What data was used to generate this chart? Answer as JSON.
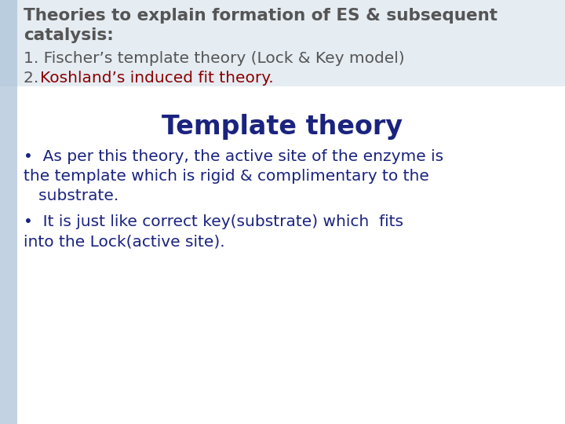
{
  "background_color": "#ffffff",
  "left_bar_color": "#a8c0d6",
  "top_bg_color": "#d0dde8",
  "header_bold_line1": "Theories to explain formation of ES & subsequent",
  "header_bold_line2": "catalysis:",
  "header_bold_color": "#555555",
  "line1_text": "1. Fischer’s template theory (Lock & Key model)",
  "line1_color": "#555555",
  "line2_num": "2. ",
  "line2_num_color": "#555555",
  "line2_main": "Koshland’s induced fit theory.",
  "line2_main_color": "#8b0000",
  "title_text": "Template theory",
  "title_color": "#1a237e",
  "b1l1": "•  As per this theory, the active site of the enzyme is",
  "b1l2": "the template which is rigid & complimentary to the",
  "b1l3": "   substrate.",
  "b2l1": "•  It is just like correct key(substrate) which  fits",
  "b2l2": "into the Lock(active site).",
  "bullet_color": "#1a237e",
  "body_fontsize": 14.5,
  "header_fontsize": 15.5,
  "title_fontsize": 24,
  "fig_width": 7.2,
  "fig_height": 5.4,
  "dpi": 100
}
